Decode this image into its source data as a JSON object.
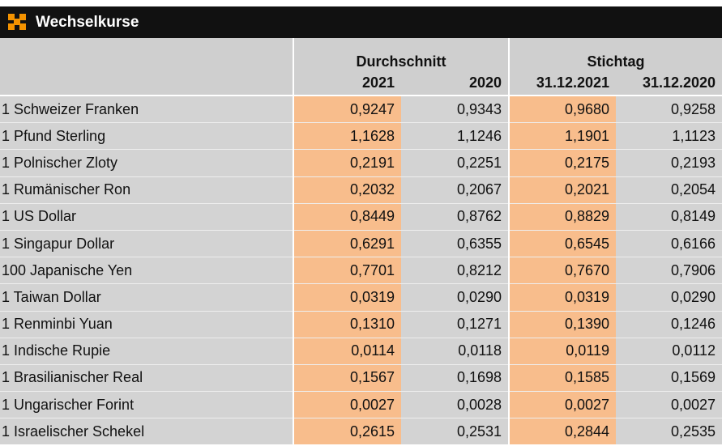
{
  "header": {
    "title": "Wechselkurse"
  },
  "table": {
    "group_headers": [
      "Durchschnitt",
      "Stichtag"
    ],
    "columns": [
      "2021",
      "2020",
      "31.12.2021",
      "31.12.2020"
    ],
    "rows": [
      [
        "1 Schweizer Franken",
        "0,9247",
        "0,9343",
        "0,9680",
        "0,9258"
      ],
      [
        "1 Pfund Sterling",
        "1,1628",
        "1,1246",
        "1,1901",
        "1,1123"
      ],
      [
        "1 Polnischer Zloty",
        "0,2191",
        "0,2251",
        "0,2175",
        "0,2193"
      ],
      [
        "1 Rumänischer Ron",
        "0,2032",
        "0,2067",
        "0,2021",
        "0,2054"
      ],
      [
        "1 US Dollar",
        "0,8449",
        "0,8762",
        "0,8829",
        "0,8149"
      ],
      [
        "1 Singapur Dollar",
        "0,6291",
        "0,6355",
        "0,6545",
        "0,6166"
      ],
      [
        "100 Japanische Yen",
        "0,7701",
        "0,8212",
        "0,7670",
        "0,7906"
      ],
      [
        "1 Taiwan Dollar",
        "0,0319",
        "0,0290",
        "0,0319",
        "0,0290"
      ],
      [
        "1 Renminbi Yuan",
        "0,1310",
        "0,1271",
        "0,1390",
        "0,1246"
      ],
      [
        "1 Indische Rupie",
        "0,0114",
        "0,0118",
        "0,0119",
        "0,0112"
      ],
      [
        "1 Brasilianischer Real",
        "0,1567",
        "0,1698",
        "0,1585",
        "0,1569"
      ],
      [
        "1 Ungarischer Forint",
        "0,0027",
        "0,0028",
        "0,0027",
        "0,0027"
      ],
      [
        "1 Israelischer Schekel",
        "0,2615",
        "0,2531",
        "0,2844",
        "0,2535"
      ]
    ]
  }
}
